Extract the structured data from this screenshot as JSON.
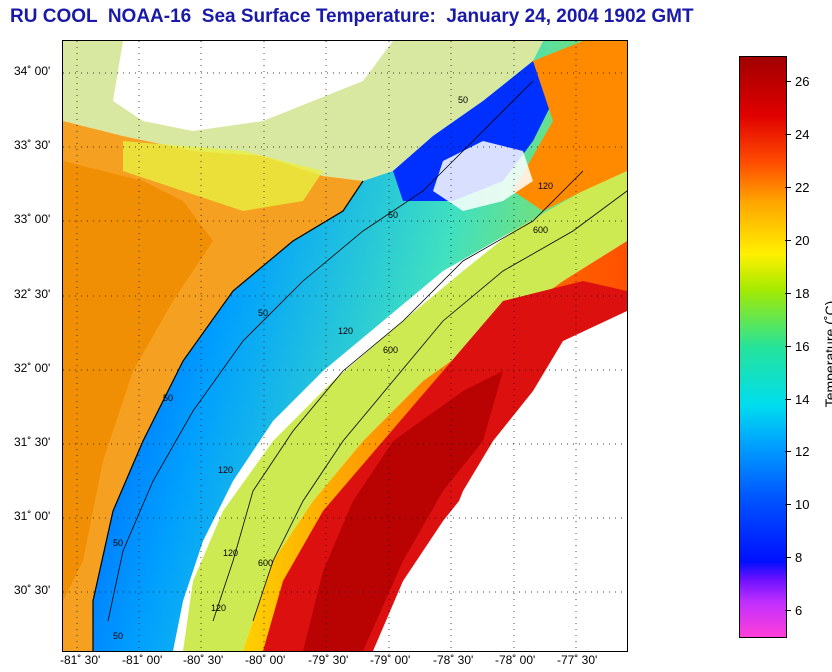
{
  "title": "RU COOL  NOAA-16  Sea Surface Temperature:  January 24, 2004 1902 GMT",
  "lat_labels": [
    "34˚ 00'",
    "33˚ 30'",
    "33˚ 00'",
    "32˚ 30'",
    "32˚ 00'",
    "31˚ 30'",
    "31˚ 00'",
    "30˚ 30'"
  ],
  "lon_labels": [
    "-81˚ 30'",
    "-81˚ 00'",
    "-80˚ 30'",
    "-80˚ 00'",
    "-79˚ 30'",
    "-79˚ 00'",
    "-78˚ 30'",
    "-78˚ 00'",
    "-77˚ 30'"
  ],
  "colorbar": {
    "title": "Temperature (˚C)",
    "ticks": [
      "26",
      "24",
      "22",
      "20",
      "18",
      "16",
      "14",
      "12",
      "10",
      "8",
      "6"
    ],
    "min": 5,
    "max": 27
  },
  "isobath_labels": [
    "50",
    "120",
    "600",
    "50",
    "120",
    "600",
    "50",
    "120",
    "600",
    "50",
    "120",
    "50",
    "120",
    "50"
  ],
  "colors": {
    "title": "#1a1aa8",
    "land": "#ff8f00",
    "cloud": "#ffffff",
    "gulfstream": "#cc0000"
  }
}
